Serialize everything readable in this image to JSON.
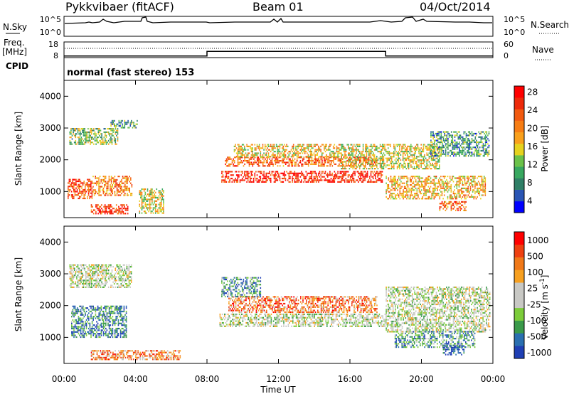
{
  "header": {
    "title": "Pykkvibaer (fitACF)",
    "beam": "Beam 01",
    "date": "04/Oct/2014"
  },
  "noise_panel": {
    "left_label": "N.Sky",
    "right_label": "N.Search",
    "left_ticks": [
      "10^5",
      "10^0"
    ],
    "right_ticks": [
      "10^5",
      "10^0"
    ]
  },
  "freq_panel": {
    "left_label_top": "Freq.",
    "left_label_bottom": "[MHz]",
    "right_label": "Nave",
    "left_ticks": [
      "18",
      "8"
    ],
    "right_ticks": [
      "60",
      "0"
    ],
    "freq_steps": [
      {
        "t": 0,
        "v": 9
      },
      {
        "t": 8,
        "v": 12
      },
      {
        "t": 18,
        "v": 9
      },
      {
        "t": 24,
        "v": 9
      }
    ]
  },
  "cpid_panel": {
    "label": "CPID",
    "mode_text": "normal (fast stereo) 153"
  },
  "chart_data": [
    {
      "type": "heatmap",
      "ylabel": "Slant Range [km]",
      "xlabel": "Time UT",
      "x_ticks": [
        "00:00",
        "04:00",
        "08:00",
        "12:00",
        "16:00",
        "20:00",
        "00:00"
      ],
      "xlim_hours": [
        0,
        24
      ],
      "ylim_km": [
        180,
        4500
      ],
      "y_ticks": [
        1000,
        2000,
        3000,
        4000
      ],
      "colorbar": {
        "label": "Power [dB]",
        "ticks": [
          "4",
          "8",
          "12",
          "16",
          "20",
          "24",
          "28"
        ],
        "colors": [
          "#0000ff",
          "#2a55b4",
          "#2f7f66",
          "#38a860",
          "#6bc24a",
          "#e6d21e",
          "#f9a01c",
          "#f77d14",
          "#f25a10",
          "#ee2a0a",
          "#ff0000"
        ]
      },
      "regions": [
        {
          "t0": 0.2,
          "t1": 1.6,
          "r0": 800,
          "r1": 1400,
          "level": 0.82
        },
        {
          "t0": 1.6,
          "t1": 3.8,
          "r0": 900,
          "r1": 1500,
          "level": 0.68
        },
        {
          "t0": 0.3,
          "t1": 3.0,
          "r0": 2500,
          "r1": 3000,
          "level": 0.4
        },
        {
          "t0": 2.6,
          "t1": 4.1,
          "r0": 3000,
          "r1": 3250,
          "level": 0.3
        },
        {
          "t0": 1.5,
          "t1": 3.6,
          "r0": 300,
          "r1": 600,
          "level": 0.85
        },
        {
          "t0": 4.2,
          "t1": 5.6,
          "r0": 300,
          "r1": 1100,
          "level": 0.5
        },
        {
          "t0": 8.8,
          "t1": 17.8,
          "r0": 1300,
          "r1": 1650,
          "level": 0.9
        },
        {
          "t0": 9.0,
          "t1": 17.5,
          "r0": 1800,
          "r1": 2100,
          "level": 0.75
        },
        {
          "t0": 9.5,
          "t1": 15.5,
          "r0": 2100,
          "r1": 2500,
          "level": 0.55
        },
        {
          "t0": 15.5,
          "t1": 21.0,
          "r0": 1700,
          "r1": 2500,
          "level": 0.5
        },
        {
          "t0": 18.0,
          "t1": 23.6,
          "r0": 800,
          "r1": 1500,
          "level": 0.6
        },
        {
          "t0": 20.5,
          "t1": 23.8,
          "r0": 2100,
          "r1": 2900,
          "level": 0.3
        },
        {
          "t0": 21.0,
          "t1": 22.5,
          "r0": 400,
          "r1": 700,
          "level": 0.75
        }
      ]
    },
    {
      "type": "heatmap",
      "ylabel": "Slant Range [km]",
      "xlabel": "Time UT",
      "x_ticks": [
        "00:00",
        "04:00",
        "08:00",
        "12:00",
        "16:00",
        "20:00",
        "00:00"
      ],
      "xlim_hours": [
        0,
        24
      ],
      "ylim_km": [
        180,
        4500
      ],
      "y_ticks": [
        1000,
        2000,
        3000,
        4000
      ],
      "colorbar": {
        "label": "Velocity [m s^-1]",
        "ticks": [
          "1000",
          "500",
          "100",
          "25",
          "-25",
          "-100",
          "-500",
          "-1000"
        ],
        "colors": [
          "#1f3fb4",
          "#2a6fb0",
          "#3a9a4a",
          "#7ccc3a",
          "#c8c8c4",
          "#c8c8c4",
          "#f7a020",
          "#f07818",
          "#ee4010",
          "#ff0000"
        ]
      },
      "regions": [
        {
          "t0": 0.3,
          "t1": 3.8,
          "r0": 2600,
          "r1": 3300,
          "level": 0.45
        },
        {
          "t0": 0.4,
          "t1": 3.5,
          "r0": 1000,
          "r1": 2000,
          "level": 0.2
        },
        {
          "t0": 1.5,
          "t1": 6.5,
          "r0": 300,
          "r1": 600,
          "level": 0.72
        },
        {
          "t0": 8.7,
          "t1": 18.0,
          "r0": 1350,
          "r1": 1750,
          "level": 0.45
        },
        {
          "t0": 9.2,
          "t1": 17.5,
          "r0": 1800,
          "r1": 2300,
          "level": 0.75
        },
        {
          "t0": 8.8,
          "t1": 11.0,
          "r0": 2300,
          "r1": 2900,
          "level": 0.22
        },
        {
          "t0": 18.0,
          "t1": 23.8,
          "r0": 1200,
          "r1": 2600,
          "level": 0.45
        },
        {
          "t0": 18.5,
          "t1": 23.0,
          "r0": 700,
          "r1": 1200,
          "level": 0.25
        },
        {
          "t0": 21.2,
          "t1": 22.4,
          "r0": 450,
          "r1": 750,
          "level": 0.05
        }
      ]
    }
  ]
}
